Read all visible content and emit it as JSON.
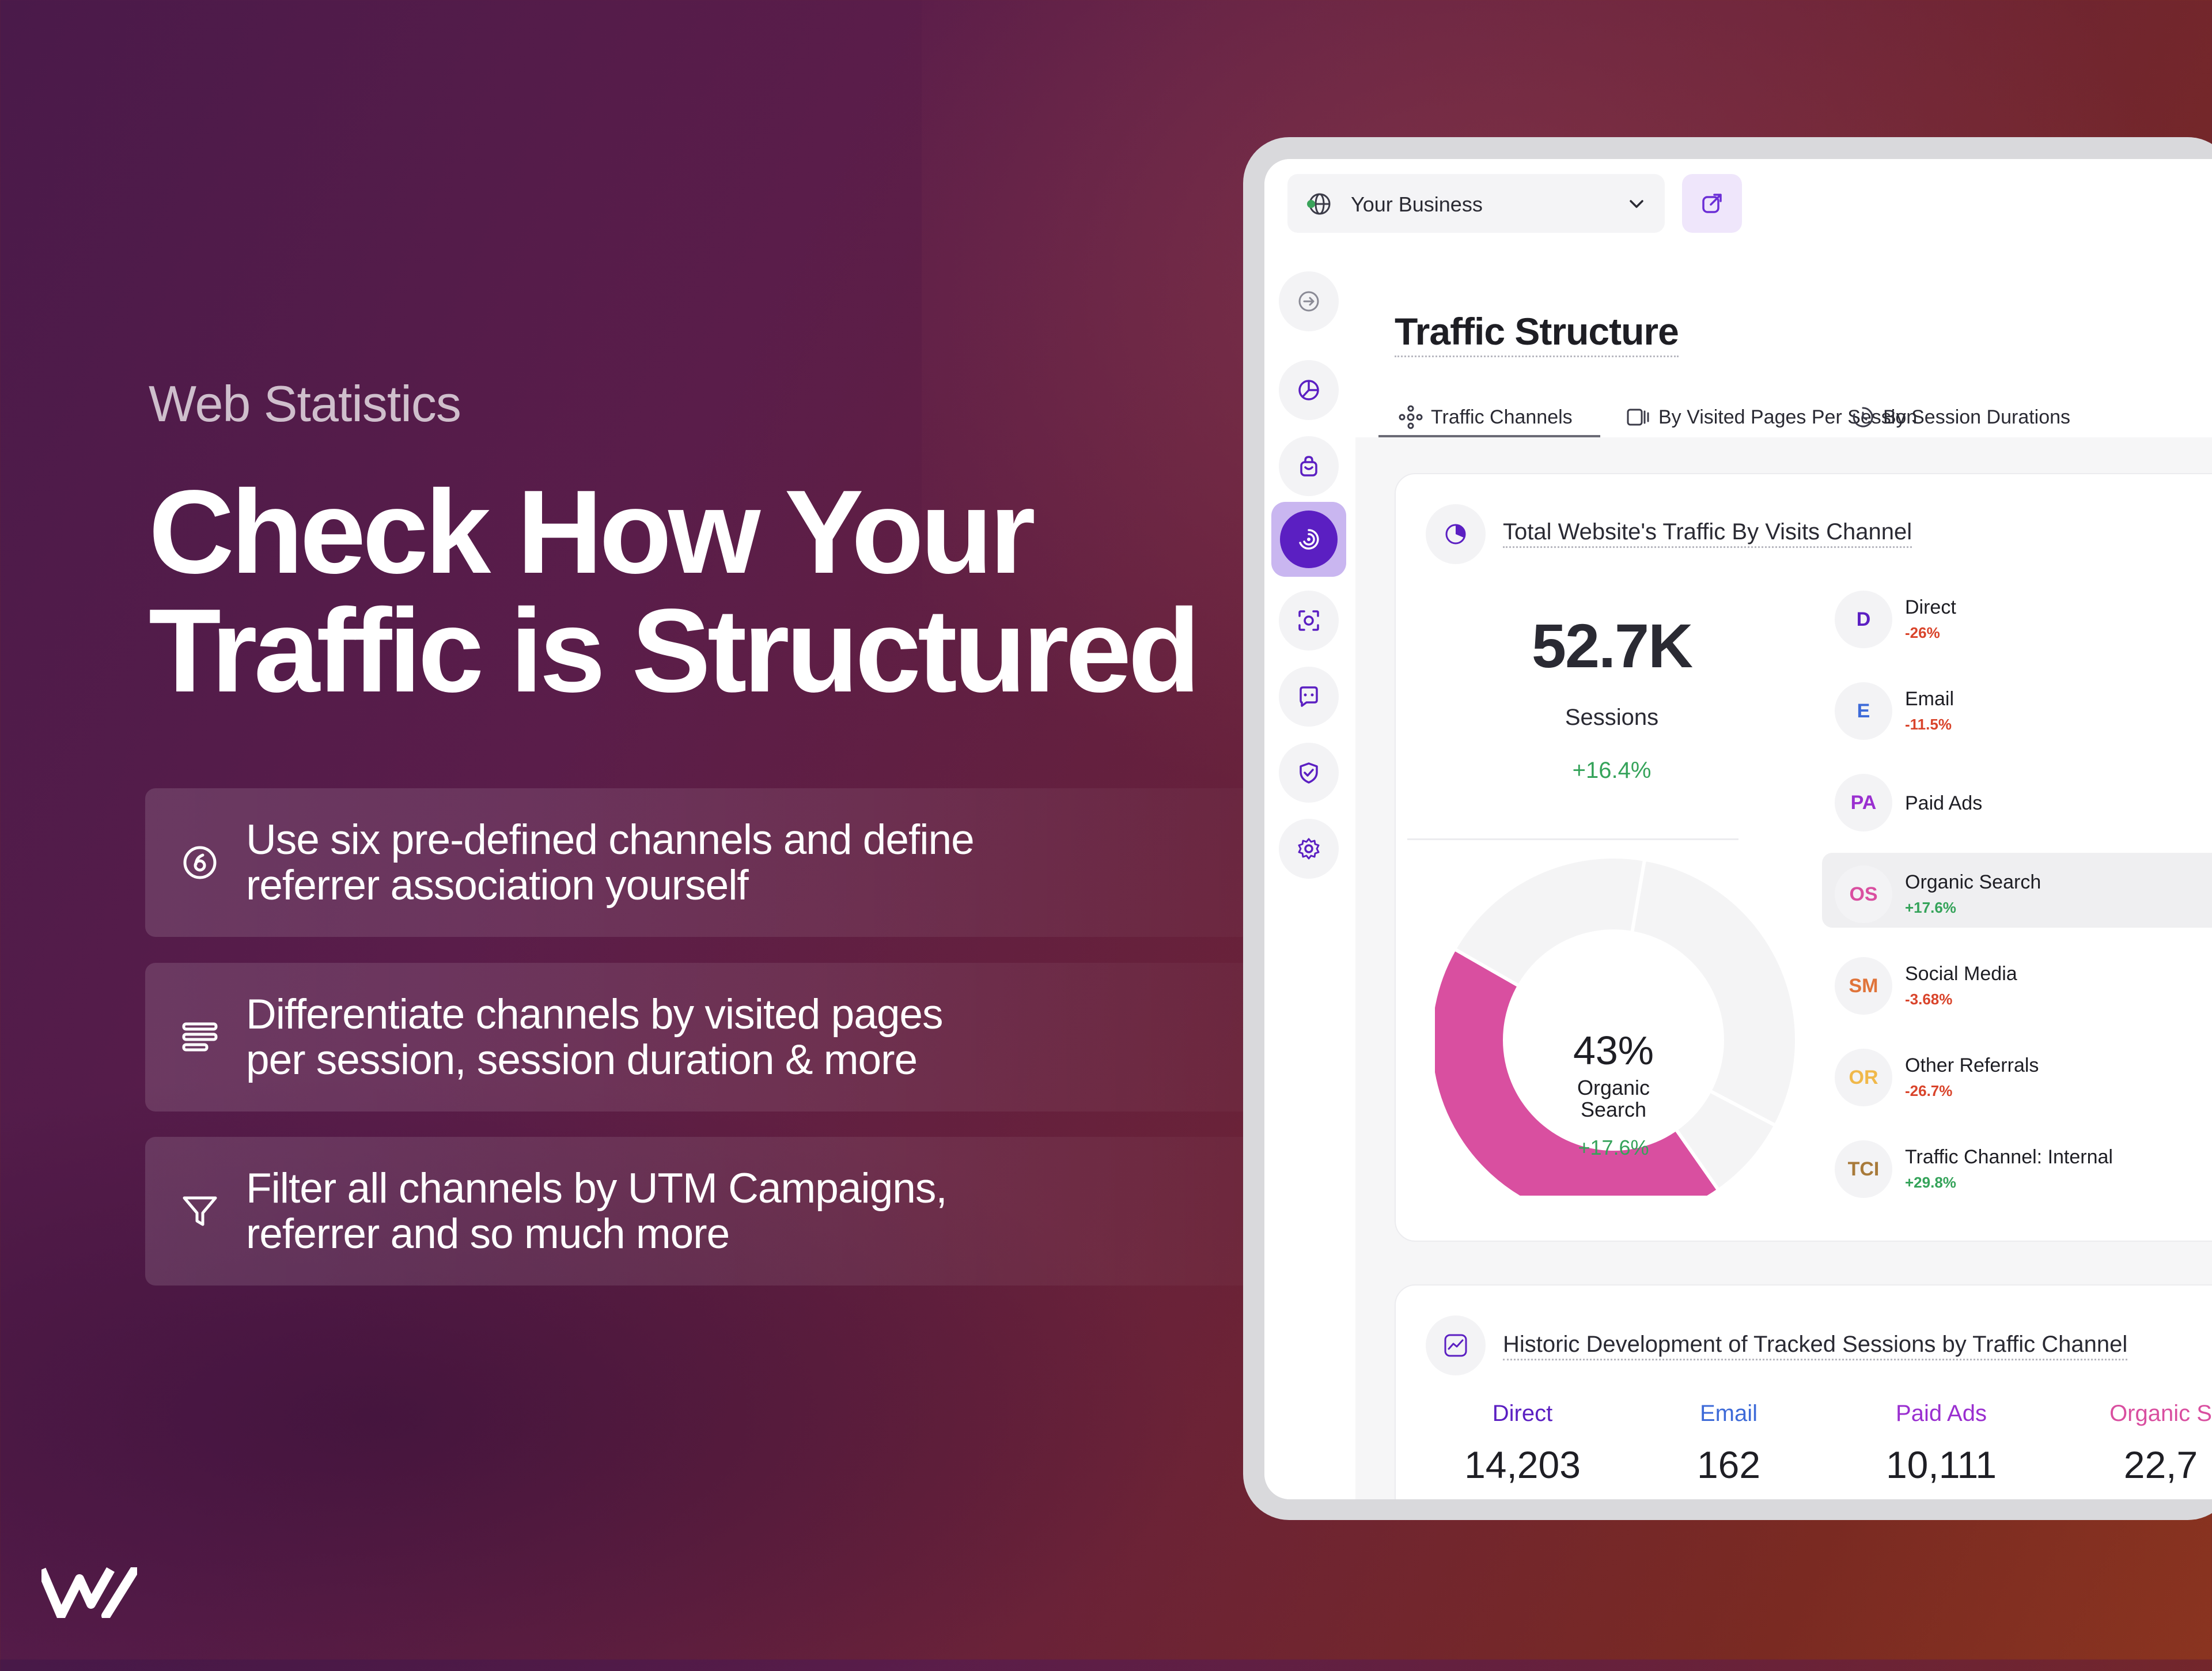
{
  "marketing": {
    "eyebrow": "Web Statistics",
    "headline_line1": "Check How Your",
    "headline_line2": "Traffic is Structured",
    "features": [
      {
        "icon": "six-circle-icon",
        "line1": "Use six pre-defined channels and define",
        "line2": "referrer association yourself"
      },
      {
        "icon": "lines-icon",
        "line1": "Differentiate channels by visited pages",
        "line2": "per session, session duration & more"
      },
      {
        "icon": "filter-icon",
        "line1": "Filter all channels by UTM Campaigns,",
        "line2": "referrer and so much more"
      }
    ],
    "logo": "w-logo"
  },
  "app": {
    "business_selector": {
      "label": "Your Business",
      "icon": "globe-icon"
    },
    "external_link_icon": "external-link-icon",
    "sidebar": [
      {
        "icon": "logout-icon",
        "active": false
      },
      {
        "icon": "pie-chart-icon",
        "active": false
      },
      {
        "icon": "bag-icon",
        "active": false
      },
      {
        "icon": "traffic-icon",
        "active": true
      },
      {
        "icon": "scan-icon",
        "active": false
      },
      {
        "icon": "chat-icon",
        "active": false
      },
      {
        "icon": "shield-check-icon",
        "active": false
      },
      {
        "icon": "settings-icon",
        "active": false
      }
    ],
    "page_title": "Traffic Structure",
    "tabs": [
      {
        "label": "Traffic Channels",
        "active": true
      },
      {
        "label": "By Visited Pages Per Session",
        "active": false
      },
      {
        "label": "By Session Durations",
        "active": false
      }
    ],
    "card1": {
      "title": "Total Website's Traffic By Visits Channel",
      "sessions_value": "52.7K",
      "sessions_label": "Sessions",
      "sessions_change": "+16.4%",
      "donut": {
        "center_pct": "43%",
        "center_label_1": "Organic",
        "center_label_2": "Search",
        "center_change": "+17.6%",
        "highlight_fraction": 0.43,
        "highlight_color": "#d94fa0"
      },
      "channels": [
        {
          "abbr": "D",
          "name": "Direct",
          "change": "-26%",
          "color": "#5b1fc2",
          "change_color": "#d9442b"
        },
        {
          "abbr": "E",
          "name": "Email",
          "change": "-11.5%",
          "color": "#3d6ad8",
          "change_color": "#d9442b"
        },
        {
          "abbr": "PA",
          "name": "Paid Ads",
          "change": "",
          "color": "#9a2fd0",
          "change_color": "#d9442b"
        },
        {
          "abbr": "OS",
          "name": "Organic Search",
          "change": "+17.6%",
          "color": "#d94fa0",
          "change_color": "#35a35a"
        },
        {
          "abbr": "SM",
          "name": "Social Media",
          "change": "-3.68%",
          "color": "#e0743a",
          "change_color": "#d9442b"
        },
        {
          "abbr": "OR",
          "name": "Other Referrals",
          "change": "-26.7%",
          "color": "#f0b84a",
          "change_color": "#d9442b"
        },
        {
          "abbr": "TCI",
          "name": "Traffic Channel: Internal",
          "change": "+29.8%",
          "color": "#a87a3a",
          "change_color": "#35a35a"
        }
      ]
    },
    "card2": {
      "title": "Historic Development of Tracked Sessions by Traffic Channel",
      "columns": [
        {
          "label": "Direct",
          "value": "14,203",
          "color": "#5b1fc2"
        },
        {
          "label": "Email",
          "value": "162",
          "color": "#3d6ad8"
        },
        {
          "label": "Paid Ads",
          "value": "10,111",
          "color": "#9a2fd0"
        },
        {
          "label": "Organic S",
          "value": "22,7",
          "color": "#d94fa0"
        }
      ]
    }
  }
}
